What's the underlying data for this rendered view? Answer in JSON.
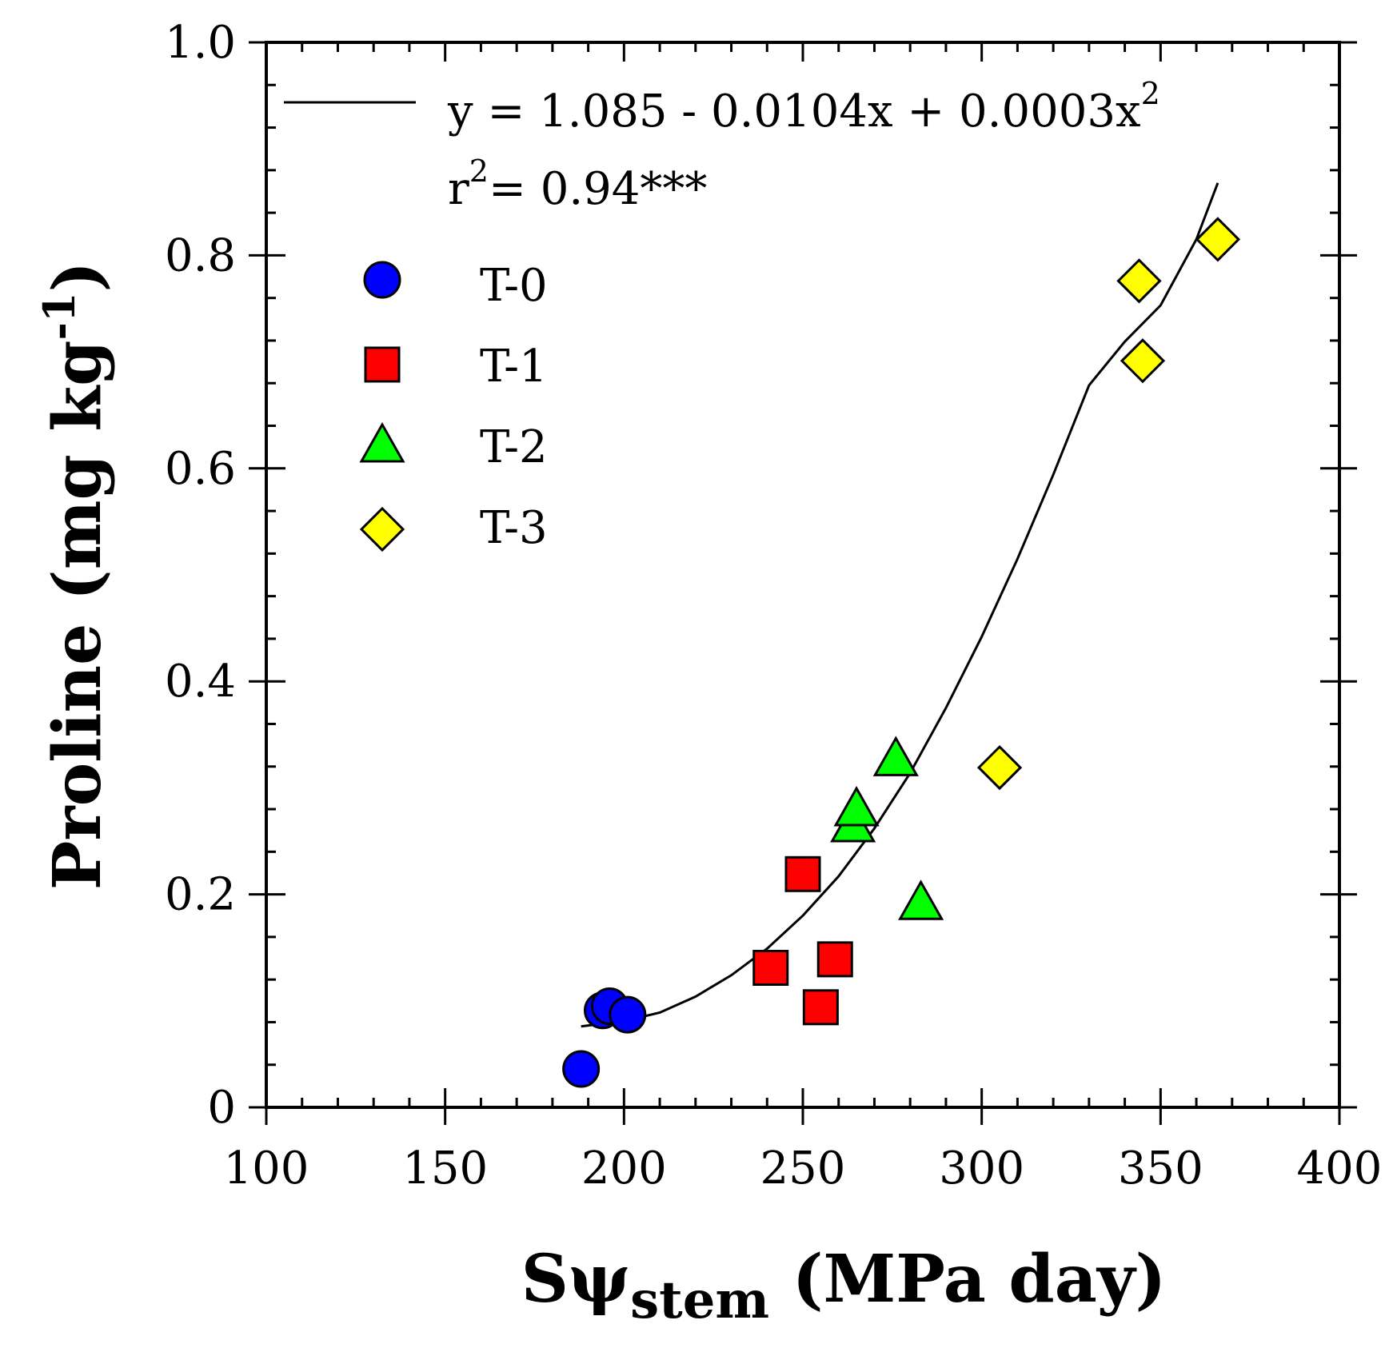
{
  "chart_data": {
    "type": "scatter",
    "title": "",
    "xlabel": {
      "base": "Sψ",
      "subscript": "stem",
      "unit": " (MPa day)"
    },
    "ylabel": {
      "base": "Proline (mg kg",
      "superscript": "-1",
      "closing": ")"
    },
    "xlim": [
      100,
      400
    ],
    "ylim": [
      0,
      1.0
    ],
    "x_ticks": [
      100,
      150,
      200,
      250,
      300,
      350,
      400
    ],
    "x_tick_labels": [
      "100",
      "150",
      "200",
      "250",
      "300",
      "350",
      "400"
    ],
    "y_ticks": [
      0,
      0.2,
      0.4,
      0.6,
      0.8,
      1.0
    ],
    "y_tick_labels": [
      "0",
      "0.2",
      "0.4",
      "0.6",
      "0.8",
      "1.0"
    ],
    "x_minor_step": 10,
    "y_minor_step": 0.04,
    "grid": false,
    "legend_position": "top-left",
    "fit": {
      "equation_prefix": "y = 1.085 - 0.0104x + 0.0003x",
      "equation_power": "2",
      "r2_prefix": "r",
      "r2_power": "2",
      "r2_value": "= 0.94***",
      "x_range": [
        188,
        366
      ],
      "curve": [
        [
          188,
          0.076
        ],
        [
          200,
          0.081
        ],
        [
          210,
          0.089
        ],
        [
          220,
          0.104
        ],
        [
          230,
          0.124
        ],
        [
          240,
          0.149
        ],
        [
          250,
          0.18
        ],
        [
          260,
          0.217
        ],
        [
          270,
          0.262
        ],
        [
          280,
          0.314
        ],
        [
          290,
          0.375
        ],
        [
          300,
          0.442
        ],
        [
          310,
          0.515
        ],
        [
          320,
          0.594
        ],
        [
          330,
          0.678
        ],
        [
          340,
          0.719
        ],
        [
          350,
          0.753
        ],
        [
          360,
          0.815
        ],
        [
          366,
          0.868
        ]
      ]
    },
    "series": [
      {
        "name": "T-0",
        "marker": "circle",
        "color": "#0000ff",
        "points": [
          [
            188,
            0.036
          ],
          [
            194,
            0.091
          ],
          [
            196,
            0.095
          ],
          [
            201,
            0.087
          ]
        ]
      },
      {
        "name": "T-1",
        "marker": "square",
        "color": "#ff0000",
        "points": [
          [
            241,
            0.131
          ],
          [
            250,
            0.219
          ],
          [
            255,
            0.094
          ],
          [
            259,
            0.139
          ]
        ]
      },
      {
        "name": "T-2",
        "marker": "triangle",
        "color": "#00ff00",
        "points": [
          [
            264,
            0.265
          ],
          [
            265,
            0.28
          ],
          [
            276,
            0.327
          ],
          [
            283,
            0.192
          ]
        ]
      },
      {
        "name": "T-3",
        "marker": "diamond",
        "color": "#ffff00",
        "points": [
          [
            305,
            0.319
          ],
          [
            344,
            0.776
          ],
          [
            345,
            0.701
          ],
          [
            366,
            0.815
          ]
        ]
      }
    ]
  }
}
